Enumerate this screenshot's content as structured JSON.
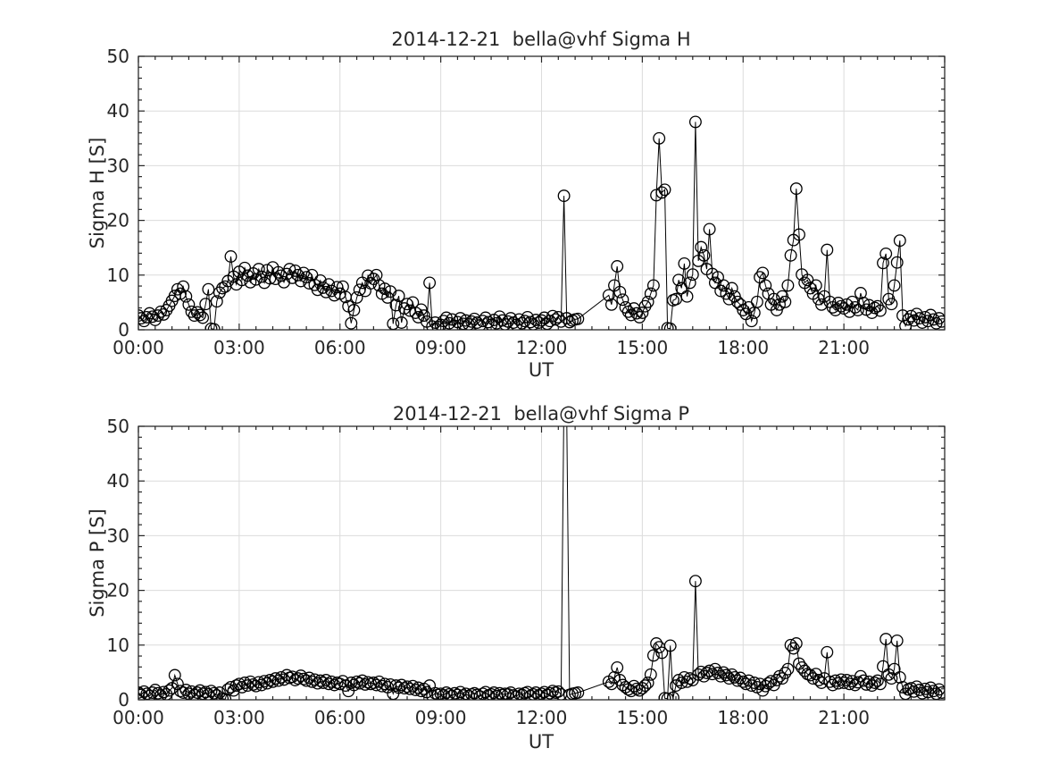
{
  "figure": {
    "background": "#ffffff",
    "axis_color": "#1a1a1a",
    "text_color": "#262626",
    "grid_color": "#dcdcdc",
    "data_color": "#000000"
  },
  "chart_data": [
    {
      "type": "line",
      "title": "2014-12-21  bella@vhf Sigma H",
      "xlabel": "UT",
      "ylabel": "Sigma H [S]",
      "marker": "open-circle",
      "legend": null,
      "grid": true,
      "xlim": [
        0,
        24
      ],
      "ylim": [
        0,
        50
      ],
      "xticks": {
        "hours": [
          0,
          3,
          6,
          9,
          12,
          15,
          18,
          21
        ],
        "labels": [
          "00:00",
          "03:00",
          "06:00",
          "09:00",
          "12:00",
          "15:00",
          "18:00",
          "21:00"
        ]
      },
      "yticks": {
        "values": [
          0,
          10,
          20,
          30,
          40,
          50
        ],
        "labels": [
          "0",
          "10",
          "20",
          "30",
          "40",
          "50"
        ]
      },
      "x_minor_step_hours": 0.5,
      "y_minor_step": 2,
      "t_start_hours": 0,
      "t_step_minutes": 5,
      "values": [
        2.6,
        2.1,
        1.6,
        2.3,
        3.0,
        2.4,
        1.8,
        2.6,
        3.3,
        2.8,
        3.6,
        4.4,
        5.3,
        6.2,
        7.4,
        6.6,
        7.9,
        6.1,
        4.6,
        3.3,
        2.6,
        3.2,
        2.7,
        2.2,
        4.7,
        7.4,
        0.2,
        0.1,
        5.2,
        6.8,
        7.6,
        7.9,
        8.9,
        13.4,
        9.7,
        8.3,
        10.6,
        9.1,
        11.3,
        9.9,
        8.7,
        10.3,
        9.2,
        11.1,
        9.7,
        8.6,
        10.9,
        9.4,
        11.4,
        9.3,
        10.5,
        9.9,
        8.7,
        10.2,
        11.1,
        9.5,
        10.8,
        10.0,
        8.9,
        10.4,
        9.6,
        8.5,
        10.0,
        8.2,
        7.3,
        9.0,
        7.7,
        6.9,
        8.3,
        7.1,
        6.3,
        7.8,
        6.6,
        7.9,
        6.0,
        4.3,
        1.2,
        3.6,
        5.9,
        7.3,
        8.6,
        7.1,
        9.9,
        8.5,
        9.3,
        10.0,
        8.1,
        6.6,
        7.5,
        5.9,
        7.0,
        1.1,
        4.5,
        6.2,
        1.3,
        3.9,
        4.7,
        3.5,
        5.0,
        3.1,
        2.3,
        3.7,
        2.6,
        1.5,
        8.6,
        0.6,
        1.3,
        0.5,
        0.9,
        1.6,
        2.2,
        1.2,
        1.9,
        0.7,
        1.4,
        2.1,
        1.1,
        1.7,
        1.0,
        1.5,
        2.0,
        1.3,
        0.8,
        1.6,
        2.2,
        1.4,
        0.9,
        1.8,
        1.2,
        2.4,
        1.7,
        1.0,
        1.5,
        2.1,
        1.3,
        0.9,
        1.9,
        1.2,
        1.6,
        2.3,
        1.4,
        1.0,
        1.8,
        1.3,
        1.7,
        2.2,
        1.1,
        1.6,
        2.5,
        1.9,
        2.3,
        1.5,
        24.5,
        2.1,
        1.4,
        1.7,
        1.9,
        2.0,
        null,
        null,
        null,
        null,
        null,
        null,
        null,
        null,
        null,
        null,
        6.3,
        4.6,
        8.1,
        11.6,
        6.9,
        5.5,
        4.1,
        3.3,
        2.7,
        3.9,
        3.0,
        2.3,
        3.1,
        4.3,
        5.1,
        6.6,
        8.1,
        24.6,
        35.0,
        25.1,
        25.6,
        0.3,
        0.2,
        5.4,
        5.6,
        9.1,
        7.6,
        12.1,
        6.1,
        8.6,
        10.1,
        38.0,
        12.6,
        15.1,
        13.6,
        11.1,
        18.4,
        10.2,
        8.6,
        9.6,
        7.1,
        8.1,
        6.6,
        5.6,
        7.6,
        6.1,
        5.1,
        4.6,
        3.6,
        2.9,
        4.1,
        1.6,
        3.1,
        5.1,
        9.6,
        10.4,
        8.1,
        6.6,
        4.6,
        5.6,
        3.6,
        4.6,
        6.1,
        5.1,
        8.1,
        13.6,
        16.4,
        25.8,
        17.4,
        10.1,
        8.6,
        9.1,
        7.6,
        6.6,
        8.1,
        5.6,
        4.6,
        6.1,
        14.6,
        5.1,
        4.1,
        3.6,
        4.9,
        4.3,
        3.9,
        4.6,
        3.3,
        5.1,
        4.1,
        3.6,
        6.7,
        4.9,
        3.7,
        4.5,
        3.1,
        4.0,
        4.3,
        3.5,
        12.2,
        13.9,
        5.6,
        4.7,
        8.1,
        12.3,
        16.3,
        2.6,
        0.7,
        1.9,
        2.5,
        1.7,
        2.9,
        2.1,
        1.3,
        2.3,
        1.6,
        2.7,
        1.9,
        1.2,
        2.1,
        1.5
      ]
    },
    {
      "type": "line",
      "title": "2014-12-21  bella@vhf Sigma P",
      "xlabel": "UT",
      "ylabel": "Sigma P [S]",
      "marker": "open-circle",
      "legend": null,
      "grid": true,
      "xlim": [
        0,
        24
      ],
      "ylim": [
        0,
        50
      ],
      "xticks": {
        "hours": [
          0,
          3,
          6,
          9,
          12,
          15,
          18,
          21
        ],
        "labels": [
          "00:00",
          "03:00",
          "06:00",
          "09:00",
          "12:00",
          "15:00",
          "18:00",
          "21:00"
        ]
      },
      "yticks": {
        "values": [
          0,
          10,
          20,
          30,
          40,
          50
        ],
        "labels": [
          "0",
          "10",
          "20",
          "30",
          "40",
          "50"
        ]
      },
      "x_minor_step_hours": 0.5,
      "y_minor_step": 2,
      "t_start_hours": 0,
      "t_step_minutes": 5,
      "values": [
        1.3,
        0.9,
        1.5,
        1.1,
        0.7,
        1.3,
        1.8,
        1.2,
        0.8,
        1.4,
        1.0,
        1.7,
        2.1,
        4.5,
        2.9,
        1.6,
        1.3,
        1.8,
        1.1,
        1.5,
        0.9,
        1.3,
        1.7,
        1.1,
        1.4,
        1.0,
        1.6,
        1.2,
        0.8,
        1.3,
        0.2,
        0.1,
        1.9,
        2.3,
        1.7,
        2.6,
        2.9,
        2.3,
        3.1,
        2.6,
        3.3,
        2.8,
        2.5,
        3.2,
        2.7,
        3.4,
        3.0,
        3.6,
        3.3,
        3.9,
        3.5,
        4.1,
        3.7,
        4.5,
        4.0,
        4.2,
        3.6,
        3.9,
        4.4,
        3.8,
        3.5,
        4.0,
        3.3,
        3.7,
        3.0,
        3.5,
        3.1,
        3.6,
        2.9,
        3.3,
        2.7,
        3.1,
        2.9,
        3.4,
        2.6,
        1.6,
        3.1,
        2.7,
        3.3,
        3.0,
        3.5,
        2.8,
        3.2,
        2.9,
        3.1,
        2.7,
        3.3,
        2.5,
        2.9,
        2.3,
        2.8,
        1.1,
        2.6,
        2.2,
        2.7,
        2.1,
        2.4,
        2.0,
        2.5,
        1.8,
        2.2,
        1.6,
        2.0,
        1.4,
        2.6,
        0.7,
        1.2,
        0.9,
        1.1,
        0.8,
        1.3,
        1.0,
        0.7,
        1.2,
        0.9,
        1.4,
        0.8,
        1.1,
        0.7,
        1.0,
        1.2,
        0.9,
        0.6,
        1.1,
        1.4,
        0.8,
        1.0,
        1.3,
        0.7,
        1.2,
        0.9,
        1.1,
        1.0,
        1.3,
        0.8,
        0.6,
        1.1,
        0.9,
        1.2,
        1.4,
        0.7,
        1.0,
        1.3,
        0.8,
        1.1,
        1.4,
        0.9,
        1.2,
        1.6,
        1.3,
        1.5,
        1.0,
        55.0,
        52.0,
        0.9,
        1.1,
        1.2,
        1.3,
        null,
        null,
        null,
        null,
        null,
        null,
        null,
        null,
        null,
        null,
        3.3,
        2.9,
        4.1,
        5.9,
        3.6,
        2.7,
        2.3,
        1.9,
        1.6,
        2.5,
        2.0,
        1.7,
        2.1,
        2.6,
        3.1,
        4.6,
        8.1,
        10.3,
        9.6,
        8.6,
        0.3,
        0.2,
        9.9,
        0.4,
        2.6,
        3.6,
        3.1,
        4.1,
        3.3,
        3.9,
        3.6,
        21.7,
        4.6,
        5.1,
        4.3,
        4.9,
        5.3,
        4.7,
        5.6,
        4.9,
        4.3,
        5.0,
        4.5,
        3.9,
        4.6,
        4.1,
        3.5,
        4.0,
        3.3,
        2.9,
        3.5,
        2.6,
        3.1,
        2.3,
        2.9,
        1.7,
        2.5,
        3.0,
        3.4,
        2.7,
        3.6,
        4.3,
        3.9,
        4.9,
        5.6,
        10.0,
        9.4,
        10.3,
        6.6,
        5.9,
        5.3,
        4.7,
        4.5,
        3.9,
        4.7,
        3.6,
        3.1,
        3.9,
        8.7,
        3.3,
        2.7,
        3.5,
        3.0,
        3.7,
        3.1,
        3.6,
        2.9,
        3.4,
        2.7,
        3.2,
        4.3,
        3.5,
        2.8,
        3.3,
        2.6,
        3.1,
        3.5,
        2.9,
        6.1,
        11.1,
        4.6,
        3.9,
        5.6,
        10.8,
        4.1,
        2.3,
        1.1,
        1.9,
        2.1,
        1.5,
        2.4,
        1.8,
        1.2,
        2.0,
        1.4,
        2.2,
        1.6,
        1.1,
        1.9,
        1.3
      ]
    }
  ]
}
